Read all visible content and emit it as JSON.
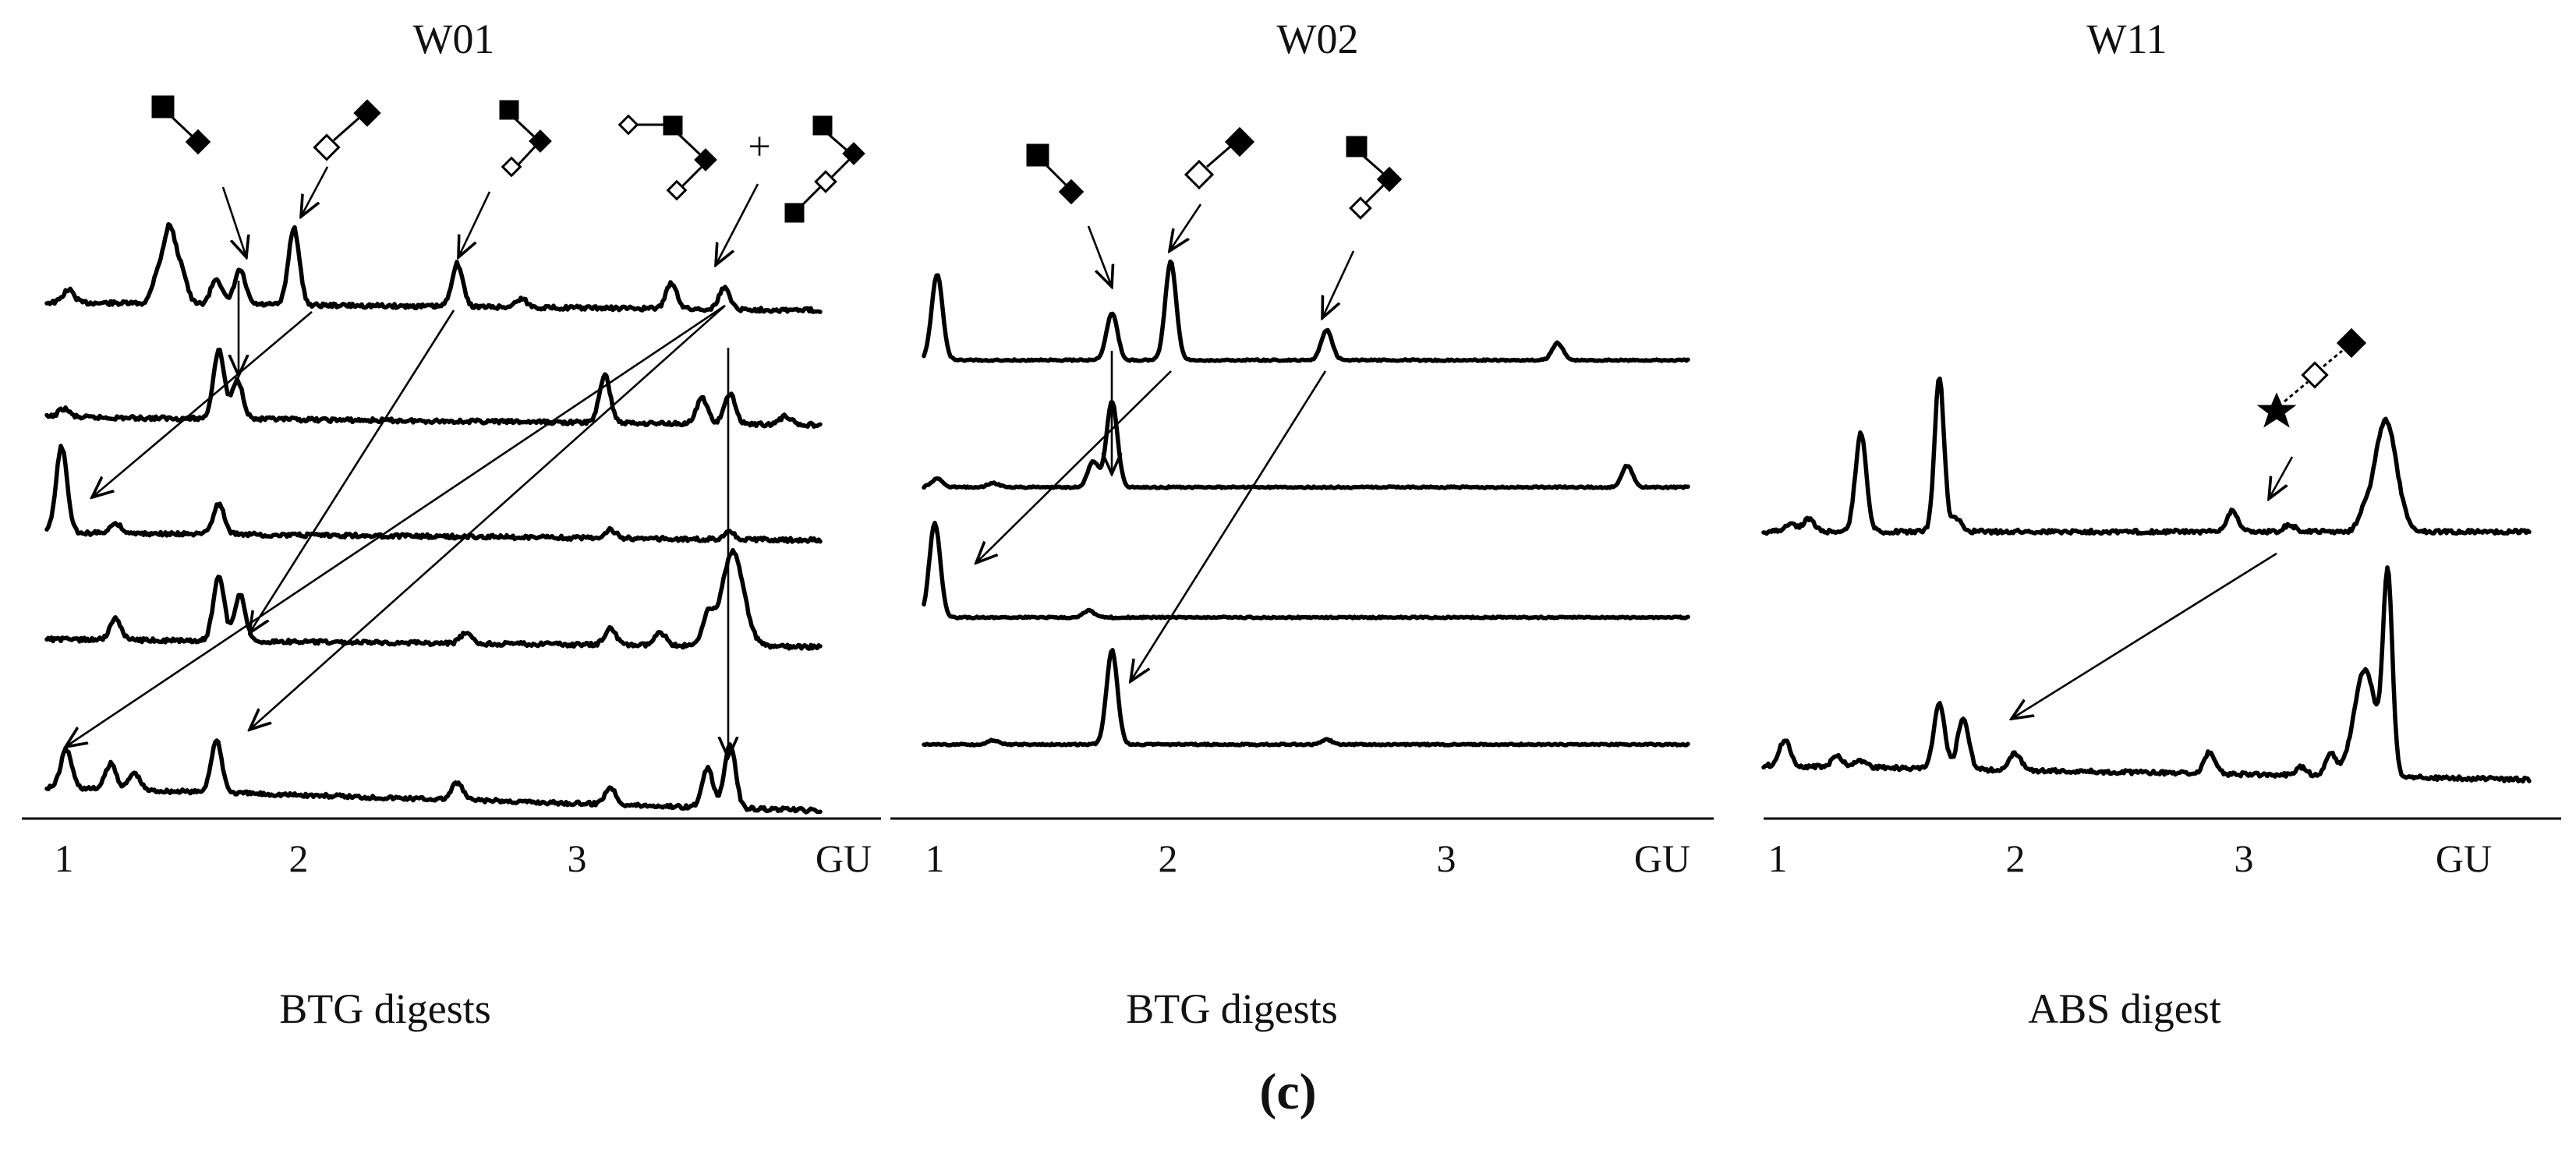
{
  "figure": {
    "panel_label": "(c)",
    "unit_label": "GU"
  },
  "chart_data": [
    {
      "type": "line",
      "title": "W01",
      "caption": "BTG digests",
      "xlabel": "GU",
      "x_ticks": [
        1,
        2,
        3
      ],
      "xlim": [
        0.85,
        3.95
      ],
      "series": [
        {
          "peaks": [
            {
              "x": 1.02,
              "h": 0.15
            },
            {
              "x": 1.4,
              "h": 0.35
            },
            {
              "x": 1.45,
              "h": 0.85
            },
            {
              "x": 1.5,
              "h": 0.4
            },
            {
              "x": 1.65,
              "h": 0.3
            },
            {
              "x": 1.75,
              "h": 0.4
            },
            {
              "x": 1.98,
              "h": 0.9
            },
            {
              "x": 2.57,
              "h": 0.5
            },
            {
              "x": 2.8,
              "h": 0.1
            },
            {
              "x": 3.34,
              "h": 0.3
            },
            {
              "x": 3.53,
              "h": 0.25
            }
          ]
        },
        {
          "peaks": [
            {
              "x": 1.0,
              "h": 0.1
            },
            {
              "x": 1.66,
              "h": 0.8
            },
            {
              "x": 1.74,
              "h": 0.45
            },
            {
              "x": 3.1,
              "h": 0.55
            },
            {
              "x": 3.45,
              "h": 0.3
            },
            {
              "x": 3.55,
              "h": 0.35
            },
            {
              "x": 3.75,
              "h": 0.1
            }
          ]
        },
        {
          "peaks": [
            {
              "x": 0.99,
              "h": 1.0
            },
            {
              "x": 1.22,
              "h": 0.12
            },
            {
              "x": 1.66,
              "h": 0.35
            },
            {
              "x": 3.12,
              "h": 0.1
            },
            {
              "x": 3.55,
              "h": 0.08
            }
          ]
        },
        {
          "peaks": [
            {
              "x": 1.22,
              "h": 0.25
            },
            {
              "x": 1.66,
              "h": 0.75
            },
            {
              "x": 1.75,
              "h": 0.55
            },
            {
              "x": 2.6,
              "h": 0.12
            },
            {
              "x": 3.12,
              "h": 0.2
            },
            {
              "x": 3.3,
              "h": 0.15
            },
            {
              "x": 3.47,
              "h": 0.35
            },
            {
              "x": 3.56,
              "h": 1.1
            }
          ]
        },
        {
          "peaks": [
            {
              "x": 1.01,
              "h": 0.45
            },
            {
              "x": 1.2,
              "h": 0.3
            },
            {
              "x": 1.3,
              "h": 0.2
            },
            {
              "x": 1.65,
              "h": 0.6
            },
            {
              "x": 2.57,
              "h": 0.2
            },
            {
              "x": 3.12,
              "h": 0.2
            },
            {
              "x": 3.47,
              "h": 0.45
            },
            {
              "x": 3.55,
              "h": 0.75
            }
          ]
        }
      ]
    },
    {
      "type": "line",
      "title": "W02",
      "caption": "BTG digests",
      "xlabel": "GU",
      "x_ticks": [
        1,
        2,
        3
      ],
      "xlim": [
        0.85,
        3.95
      ],
      "series": [
        {
          "peaks": [
            {
              "x": 1.01,
              "h": 1.0
            },
            {
              "x": 1.76,
              "h": 0.55
            },
            {
              "x": 2.01,
              "h": 1.15
            },
            {
              "x": 2.57,
              "h": 0.35
            },
            {
              "x": 3.4,
              "h": 0.2
            }
          ]
        },
        {
          "peaks": [
            {
              "x": 1.01,
              "h": 0.1
            },
            {
              "x": 1.25,
              "h": 0.05
            },
            {
              "x": 1.68,
              "h": 0.3
            },
            {
              "x": 1.76,
              "h": 1.0
            },
            {
              "x": 3.65,
              "h": 0.25
            }
          ]
        },
        {
          "peaks": [
            {
              "x": 1.0,
              "h": 1.1
            },
            {
              "x": 1.66,
              "h": 0.08
            }
          ]
        },
        {
          "peaks": [
            {
              "x": 1.25,
              "h": 0.05
            },
            {
              "x": 1.76,
              "h": 1.1
            },
            {
              "x": 2.57,
              "h": 0.06
            }
          ]
        }
      ]
    },
    {
      "type": "line",
      "title": "W11",
      "caption": "ABS digest",
      "xlabel": "GU",
      "x_ticks": [
        1,
        2,
        3
      ],
      "xlim": [
        0.93,
        4.1
      ],
      "series": [
        {
          "peaks": [
            {
              "x": 1.05,
              "h": 0.1
            },
            {
              "x": 1.13,
              "h": 0.15
            },
            {
              "x": 1.35,
              "h": 1.15
            },
            {
              "x": 1.68,
              "h": 1.8
            },
            {
              "x": 1.75,
              "h": 0.15
            },
            {
              "x": 2.95,
              "h": 0.25
            },
            {
              "x": 3.2,
              "h": 0.08
            },
            {
              "x": 3.52,
              "h": 0.15
            },
            {
              "x": 3.62,
              "h": 1.3
            }
          ]
        },
        {
          "peaks": [
            {
              "x": 1.03,
              "h": 0.3
            },
            {
              "x": 1.25,
              "h": 0.12
            },
            {
              "x": 1.35,
              "h": 0.08
            },
            {
              "x": 1.68,
              "h": 0.75
            },
            {
              "x": 1.78,
              "h": 0.6
            },
            {
              "x": 2.0,
              "h": 0.2
            },
            {
              "x": 2.85,
              "h": 0.25
            },
            {
              "x": 3.25,
              "h": 0.1
            },
            {
              "x": 3.38,
              "h": 0.25
            },
            {
              "x": 3.53,
              "h": 1.25
            },
            {
              "x": 3.63,
              "h": 2.3
            }
          ]
        }
      ]
    }
  ]
}
